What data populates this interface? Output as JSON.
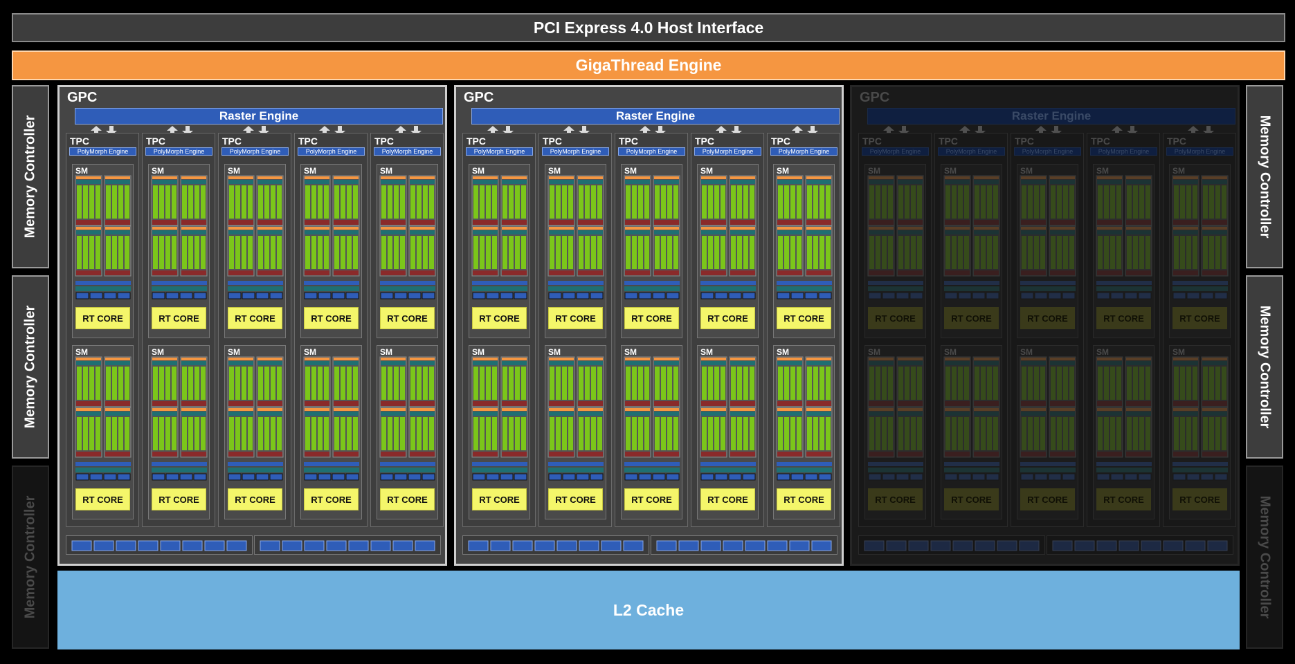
{
  "host_interface": "PCI Express 4.0 Host Interface",
  "gigathread": "GigaThread Engine",
  "l2_cache": "L2 Cache",
  "memory_controllers": [
    {
      "label": "Memory Controller",
      "side": "left",
      "active": true
    },
    {
      "label": "Memory Controller",
      "side": "left",
      "active": true
    },
    {
      "label": "Memory Controller",
      "side": "left",
      "active": false
    },
    {
      "label": "Memory Controller",
      "side": "right",
      "active": true
    },
    {
      "label": "Memory Controller",
      "side": "right",
      "active": true
    },
    {
      "label": "Memory Controller",
      "side": "right",
      "active": false
    }
  ],
  "gpcs": [
    {
      "label": "GPC",
      "active": true
    },
    {
      "label": "GPC",
      "active": true
    },
    {
      "label": "GPC",
      "active": false
    }
  ],
  "gpc_parts": {
    "raster_engine": "Raster Engine",
    "tpc_label": "TPC",
    "polymorph_engine": "PolyMorph Engine",
    "sm_label": "SM",
    "rt_core": "RT CORE",
    "tpc_per_gpc": 5,
    "sm_per_tpc": 2
  },
  "colors": {
    "host_interface": "#3d3d3d",
    "gigathread": "#f59641",
    "l2_cache": "#6eb0dd",
    "raster": "#2f5db8",
    "cuda_core": "#7bc61a",
    "rt_core": "#f4f66a",
    "tensor": "#8a2a2a"
  }
}
